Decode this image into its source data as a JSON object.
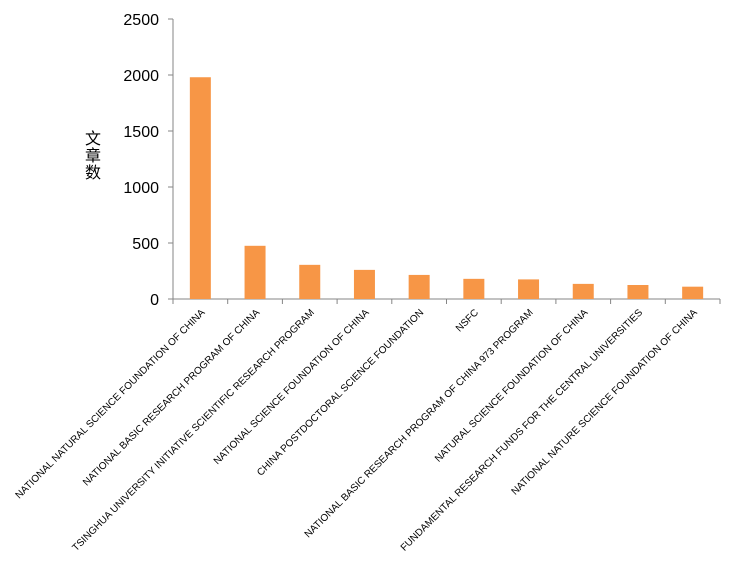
{
  "chart_data": {
    "type": "bar",
    "title": "",
    "xlabel": "",
    "ylabel": "文章数",
    "ylim": [
      0,
      2500
    ],
    "yticks": [
      0,
      500,
      1000,
      1500,
      2000,
      2500
    ],
    "grid": false,
    "bar_color": "#f79646",
    "categories": [
      "NATIONAL NATURAL SCIENCE FOUNDATION OF CHINA",
      "NATIONAL BASIC RESEARCH PROGRAM OF CHINA",
      "TSINGHUA UNIVERSITY INITIATIVE SCIENTIFIC RESEARCH PROGRAM",
      "NATIONAL SCIENCE FOUNDATION OF CHINA",
      "CHINA POSTDOCTORAL SCIENCE FOUNDATION",
      "NSFC",
      "NATIONAL BASIC RESEARCH PROGRAM OF CHINA 973 PROGRAM",
      "NATURAL SCIENCE FOUNDATION OF CHINA",
      "FUNDAMENTAL RESEARCH FUNDS FOR THE CENTRAL UNIVERSITIES",
      "NATIONAL NATURE SCIENCE FOUNDATION OF CHINA"
    ],
    "values": [
      1980,
      475,
      305,
      260,
      215,
      180,
      175,
      135,
      125,
      110
    ]
  }
}
